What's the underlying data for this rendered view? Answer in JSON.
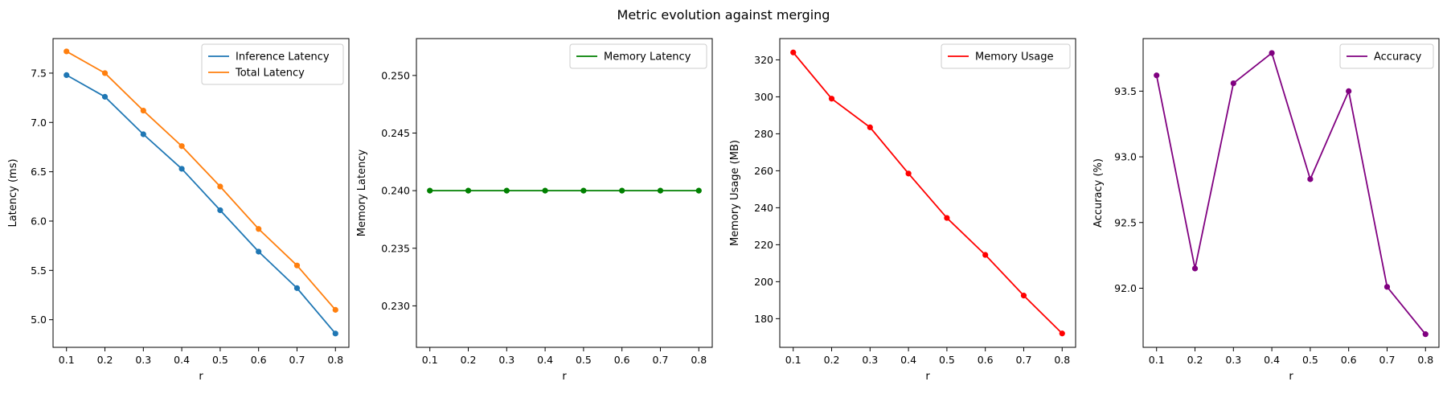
{
  "figure": {
    "suptitle": "Metric evolution against merging"
  },
  "chart_data": [
    {
      "type": "line",
      "x": [
        0.1,
        0.2,
        0.3,
        0.4,
        0.5,
        0.6,
        0.7,
        0.8
      ],
      "xticks": [
        "0.1",
        "0.2",
        "0.3",
        "0.4",
        "0.5",
        "0.6",
        "0.7",
        "0.8"
      ],
      "xlim": [
        0.065,
        0.835
      ],
      "ylim": [
        4.72,
        7.85
      ],
      "yticks": [
        5.0,
        5.5,
        6.0,
        6.5,
        7.0,
        7.5
      ],
      "ytick_labels": [
        "5.0",
        "5.5",
        "6.0",
        "6.5",
        "7.0",
        "7.5"
      ],
      "xlabel": "r",
      "ylabel": "Latency (ms)",
      "legend": "top-right",
      "grid": false,
      "series": [
        {
          "name": "Inference Latency",
          "color": "#1f77b4",
          "values": [
            7.48,
            7.26,
            6.88,
            6.53,
            6.11,
            5.69,
            5.32,
            4.86
          ]
        },
        {
          "name": "Total Latency",
          "color": "#ff7f0e",
          "values": [
            7.72,
            7.5,
            7.12,
            6.76,
            6.35,
            5.92,
            5.55,
            5.1
          ]
        }
      ]
    },
    {
      "type": "line",
      "x": [
        0.1,
        0.2,
        0.3,
        0.4,
        0.5,
        0.6,
        0.7,
        0.8
      ],
      "xticks": [
        "0.1",
        "0.2",
        "0.3",
        "0.4",
        "0.5",
        "0.6",
        "0.7",
        "0.8"
      ],
      "xlim": [
        0.065,
        0.835
      ],
      "ylim": [
        0.2264,
        0.2532
      ],
      "yticks": [
        0.23,
        0.235,
        0.24,
        0.245,
        0.25
      ],
      "ytick_labels": [
        "0.230",
        "0.235",
        "0.240",
        "0.245",
        "0.250"
      ],
      "xlabel": "r",
      "ylabel": "Memory Latency",
      "legend": "top-right",
      "grid": false,
      "series": [
        {
          "name": "Memory Latency",
          "color": "#008000",
          "values": [
            0.24,
            0.24,
            0.24,
            0.24,
            0.24,
            0.24,
            0.24,
            0.24
          ]
        }
      ]
    },
    {
      "type": "line",
      "x": [
        0.1,
        0.2,
        0.3,
        0.4,
        0.5,
        0.6,
        0.7,
        0.8
      ],
      "xticks": [
        "0.1",
        "0.2",
        "0.3",
        "0.4",
        "0.5",
        "0.6",
        "0.7",
        "0.8"
      ],
      "xlim": [
        0.065,
        0.835
      ],
      "ylim": [
        164.5,
        331.5
      ],
      "yticks": [
        180,
        200,
        220,
        240,
        260,
        280,
        300,
        320
      ],
      "ytick_labels": [
        "180",
        "200",
        "220",
        "240",
        "260",
        "280",
        "300",
        "320"
      ],
      "xlabel": "r",
      "ylabel": "Memory Usage (MB)",
      "legend": "top-right",
      "grid": false,
      "series": [
        {
          "name": "Memory Usage",
          "color": "#ff0000",
          "values": [
            324,
            299,
            283.5,
            258.5,
            234.5,
            214.5,
            192.5,
            172
          ]
        }
      ]
    },
    {
      "type": "line",
      "x": [
        0.1,
        0.2,
        0.3,
        0.4,
        0.5,
        0.6,
        0.7,
        0.8
      ],
      "xticks": [
        "0.1",
        "0.2",
        "0.3",
        "0.4",
        "0.5",
        "0.6",
        "0.7",
        "0.8"
      ],
      "xlim": [
        0.065,
        0.835
      ],
      "ylim": [
        91.55,
        93.9
      ],
      "yticks": [
        92.0,
        92.5,
        93.0,
        93.5
      ],
      "ytick_labels": [
        "92.0",
        "92.5",
        "93.0",
        "93.5"
      ],
      "xlabel": "r",
      "ylabel": "Accuracy (%)",
      "legend": "top-right",
      "grid": false,
      "series": [
        {
          "name": "Accuracy",
          "color": "#800080",
          "values": [
            93.62,
            92.15,
            93.56,
            93.79,
            92.83,
            93.5,
            92.01,
            91.65
          ]
        }
      ]
    }
  ]
}
